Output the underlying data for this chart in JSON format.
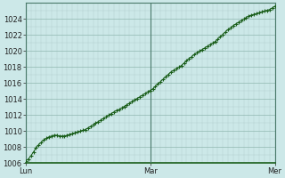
{
  "bg_color": "#cce8e8",
  "plot_bg_color": "#cce8e8",
  "line_color": "#1a5e1a",
  "marker_color": "#1a5e1a",
  "grid_color_minor": "#b0cece",
  "grid_color_major": "#90b8b0",
  "vline_color": "#4a7a6a",
  "ylim": [
    1006,
    1026
  ],
  "ytick_min": 1006,
  "ytick_max": 1025,
  "ytick_step": 2,
  "xtick_labels": [
    "Lun",
    "Mar",
    "Mer"
  ],
  "xtick_positions": [
    0,
    48,
    96
  ],
  "vlines": [
    0,
    48,
    96
  ],
  "num_points": 97,
  "y_values": [
    1006.3,
    1006.5,
    1006.9,
    1007.4,
    1007.9,
    1008.3,
    1008.6,
    1008.9,
    1009.1,
    1009.3,
    1009.4,
    1009.5,
    1009.5,
    1009.4,
    1009.4,
    1009.4,
    1009.5,
    1009.6,
    1009.7,
    1009.8,
    1009.9,
    1010.0,
    1010.1,
    1010.2,
    1010.4,
    1010.6,
    1010.8,
    1011.0,
    1011.2,
    1011.4,
    1011.6,
    1011.8,
    1012.0,
    1012.2,
    1012.4,
    1012.6,
    1012.7,
    1012.9,
    1013.1,
    1013.3,
    1013.5,
    1013.7,
    1013.9,
    1014.1,
    1014.3,
    1014.5,
    1014.7,
    1014.9,
    1015.1,
    1015.3,
    1015.6,
    1015.9,
    1016.2,
    1016.5,
    1016.8,
    1017.1,
    1017.4,
    1017.6,
    1017.8,
    1018.0,
    1018.2,
    1018.5,
    1018.8,
    1019.1,
    1019.3,
    1019.6,
    1019.8,
    1020.0,
    1020.2,
    1020.4,
    1020.6,
    1020.8,
    1021.0,
    1021.2,
    1021.5,
    1021.8,
    1022.1,
    1022.4,
    1022.7,
    1022.9,
    1023.2,
    1023.4,
    1023.6,
    1023.8,
    1024.0,
    1024.2,
    1024.4,
    1024.5,
    1024.6,
    1024.7,
    1024.8,
    1024.9,
    1025.0,
    1025.1,
    1025.2,
    1025.4,
    1025.6
  ]
}
